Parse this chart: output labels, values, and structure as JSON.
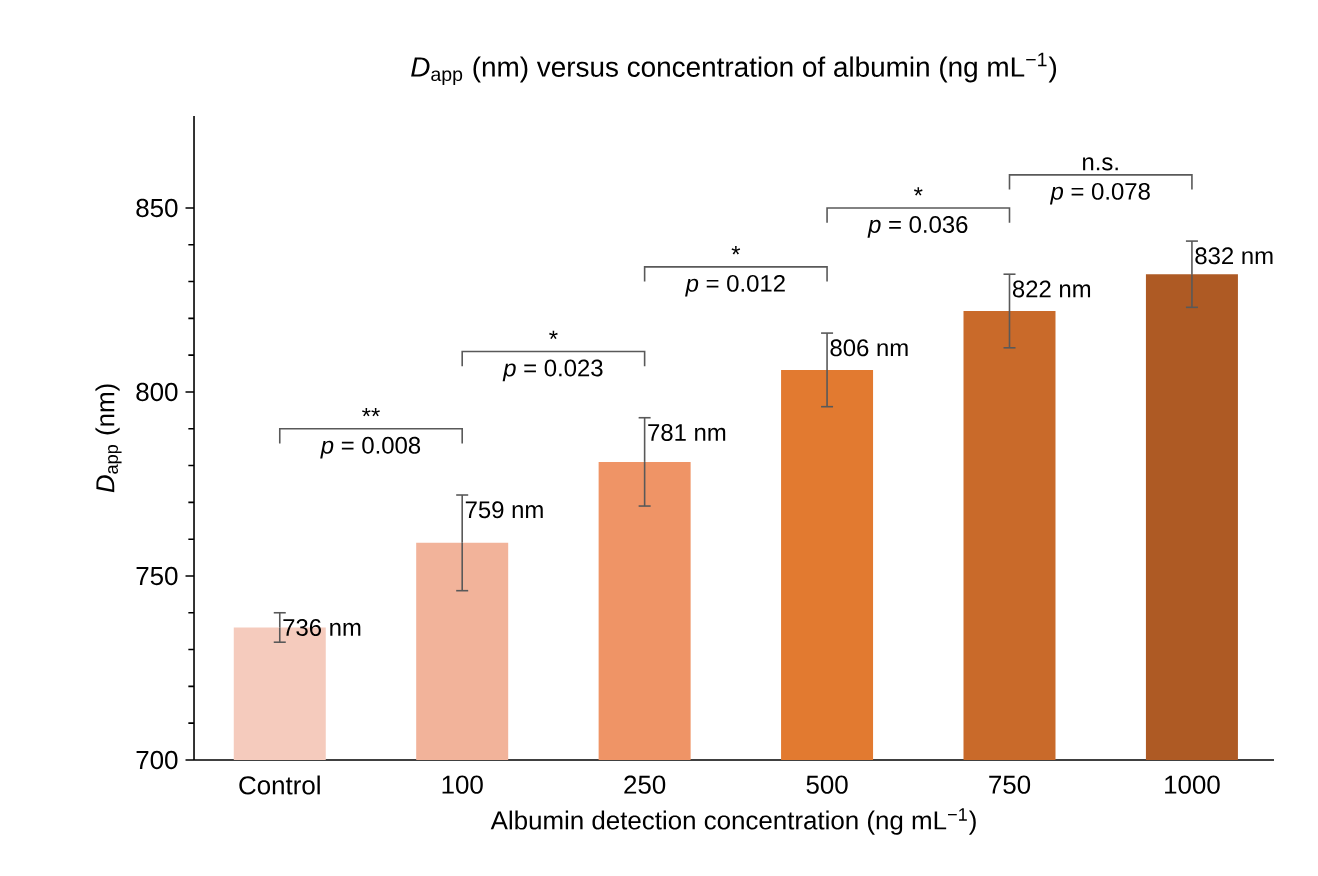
{
  "chart_data": {
    "type": "bar",
    "title": "*D*$_{app}$ (nm) versus concentration of albumin (ng mL$^{−1}$)",
    "xlabel": "Albumin detection concentration (ng mL$^{−1}$)",
    "ylabel": "*D*$_{app}$ (nm)",
    "categories": [
      "Control",
      "100",
      "250",
      "500",
      "750",
      "1000"
    ],
    "values": [
      736,
      759,
      781,
      806,
      822,
      832
    ],
    "errors": [
      4,
      13,
      12,
      10,
      10,
      9
    ],
    "value_labels": [
      "736 nm",
      "759 nm",
      "781 nm",
      "806 nm",
      "822 nm",
      "832 nm"
    ],
    "colors": [
      "#f5cbbd",
      "#f2b39a",
      "#ef9466",
      "#e27a30",
      "#c96a2a",
      "#ae5a24"
    ],
    "ylim": [
      700,
      875
    ],
    "yticks": [
      700,
      750,
      800,
      850
    ],
    "annotations": [
      "**",
      "*p* = 0.008",
      "*",
      "*p* = 0.023",
      "*",
      "*p* = 0.012",
      "*",
      "*p* = 0.036",
      "n.s.",
      "*p* = 0.078"
    ]
  }
}
